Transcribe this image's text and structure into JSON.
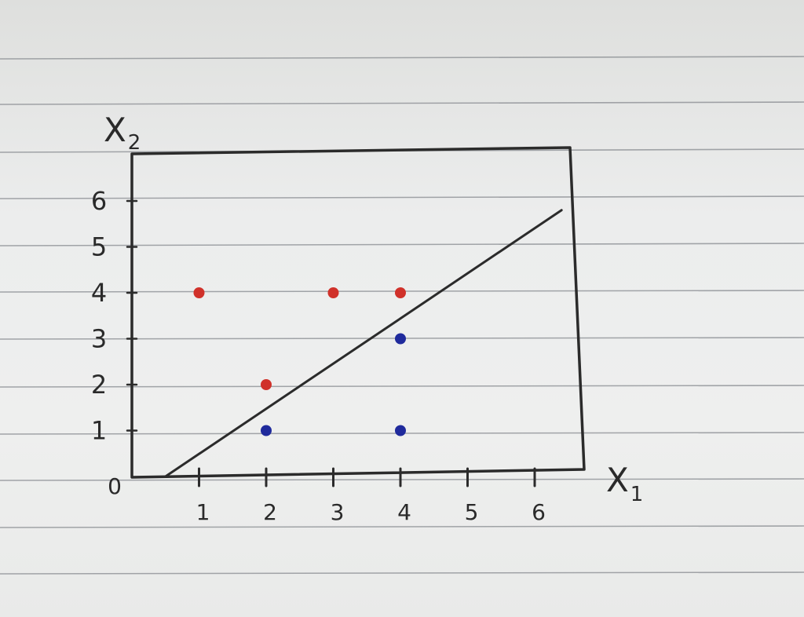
{
  "colors": {
    "paper": "#ececeb",
    "rule_line": "#8e9196",
    "ink": "#2b2b2b",
    "red_class": "#d0312a",
    "blue_class": "#1f2a9c"
  },
  "chart_data": {
    "type": "scatter",
    "xlabel_main": "X",
    "xlabel_sub": "1",
    "ylabel_main": "X",
    "ylabel_sub": "2",
    "origin_label": "0",
    "xlim": [
      0,
      6.6
    ],
    "ylim": [
      0,
      7.0
    ],
    "x_ticks": [
      1,
      2,
      3,
      4,
      5,
      6
    ],
    "y_ticks": [
      1,
      2,
      3,
      4,
      5,
      6
    ],
    "series": [
      {
        "color": "#d0312a",
        "points": [
          [
            1,
            4
          ],
          [
            3,
            4
          ],
          [
            4,
            4
          ],
          [
            2,
            2
          ]
        ]
      },
      {
        "color": "#1f2a9c",
        "points": [
          [
            4,
            3
          ],
          [
            2,
            1
          ],
          [
            4,
            1
          ]
        ]
      }
    ],
    "lines": [
      {
        "x1": 0.5,
        "y1": 0,
        "x2": 6.4,
        "y2": 5.8
      }
    ],
    "grid": false,
    "legend": "none"
  }
}
